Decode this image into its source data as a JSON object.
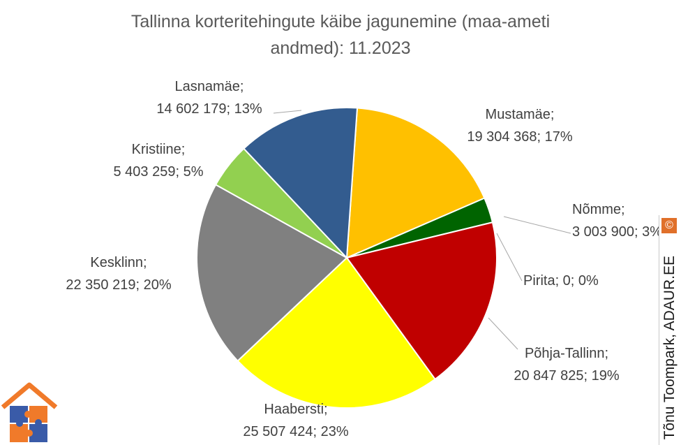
{
  "chart_data": {
    "type": "pie",
    "title": "Tallinna korteritehingute käibe jagunemine (maa-ameti andmed): 11.2023",
    "title_lines": [
      "Tallinna korteritehingute käibe jagunemine (maa-ameti",
      "andmed): 11.2023"
    ],
    "slices": [
      {
        "name": "Mustamäe",
        "value": 19304368,
        "percent": "17%",
        "value_label": "19 304 368",
        "color": "#FFC000"
      },
      {
        "name": "Nõmme",
        "value": 3003900,
        "percent": "3%",
        "value_label": "3 003 900",
        "color": "#006400"
      },
      {
        "name": "Pirita",
        "value": 0,
        "percent": "0%",
        "value_label": "0",
        "color": "#7F7F7F"
      },
      {
        "name": "Põhja-Tallinn",
        "value": 20847825,
        "percent": "19%",
        "value_label": "20 847 825",
        "color": "#C00000"
      },
      {
        "name": "Haabersti",
        "value": 25507424,
        "percent": "23%",
        "value_label": "25 507 424",
        "color": "#FFFF00"
      },
      {
        "name": "Kesklinn",
        "value": 22350219,
        "percent": "20%",
        "value_label": "22 350 219",
        "color": "#808080"
      },
      {
        "name": "Kristiine",
        "value": 5403259,
        "percent": "5%",
        "value_label": "5 403 259",
        "color": "#92D050"
      },
      {
        "name": "Lasnamäe",
        "value": 14602179,
        "percent": "13%",
        "value_label": "14 602 179",
        "color": "#335C8F"
      }
    ]
  },
  "watermark": {
    "copyright_symbol": "©",
    "text": "Tõnu Toompark, ADAUR.EE"
  },
  "logo": {
    "icon": "house-puzzle-logo-icon",
    "colors": [
      "#F07A2A",
      "#3A5BA8"
    ]
  }
}
